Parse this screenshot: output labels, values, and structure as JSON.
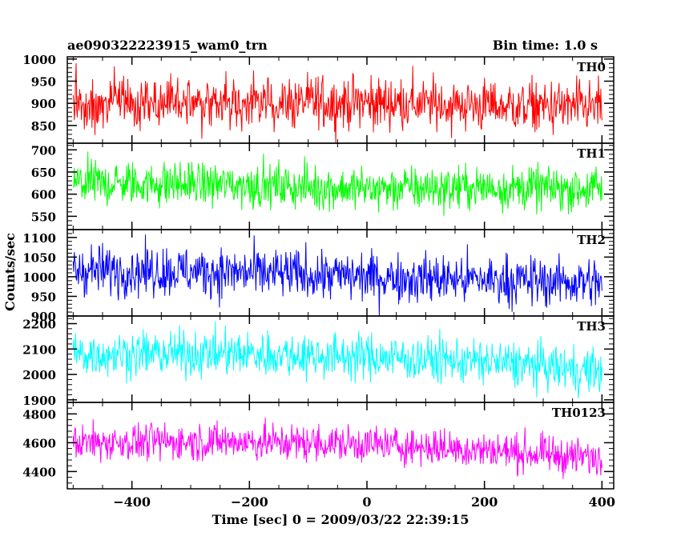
{
  "header": {
    "title": "ae090322223915_wam0_trn",
    "bin_time": "Bin time: 1.0 s"
  },
  "axes": {
    "ylabel": "Counts/sec",
    "xlabel": "Time [sec] 0 = 2009/03/22 22:39:15"
  },
  "colors": {
    "TH0": "#ff0000",
    "TH1": "#00ff00",
    "TH2": "#0000ff",
    "TH3": "#00ffff",
    "TH0123": "#ff00ff"
  },
  "chart_data": {
    "type": "line",
    "title": "ae090322223915_wam0_trn",
    "subtitle": "Bin time: 1.0 s",
    "xlabel": "Time [sec] 0 = 2009/03/22 22:39:15",
    "ylabel": "Counts/sec",
    "xlim": [
      -510,
      420
    ],
    "data_range": [
      -500,
      400
    ],
    "x_step": 1.0,
    "xticks": [
      -400,
      -200,
      0,
      200,
      400
    ],
    "panels": [
      {
        "name": "TH0",
        "color": "#ff0000",
        "ylim": [
          810,
          1005
        ],
        "yticks": [
          850,
          900,
          950,
          1000
        ],
        "trend": [
          [
            -500,
            895
          ],
          [
            -250,
            900
          ],
          [
            0,
            902
          ],
          [
            200,
            895
          ],
          [
            400,
            890
          ]
        ],
        "spread": 30
      },
      {
        "name": "TH1",
        "color": "#00ff00",
        "ylim": [
          520,
          715
        ],
        "yticks": [
          550,
          600,
          650,
          700
        ],
        "trend": [
          [
            -500,
            625
          ],
          [
            -250,
            622
          ],
          [
            0,
            612
          ],
          [
            200,
            615
          ],
          [
            400,
            612
          ]
        ],
        "spread": 25
      },
      {
        "name": "TH2",
        "color": "#0000ff",
        "ylim": [
          900,
          1120
        ],
        "yticks": [
          900,
          950,
          1000,
          1050,
          1100
        ],
        "trend": [
          [
            -500,
            1018
          ],
          [
            -250,
            1012
          ],
          [
            0,
            1000
          ],
          [
            200,
            992
          ],
          [
            400,
            985
          ]
        ],
        "spread": 32
      },
      {
        "name": "TH3",
        "color": "#00ffff",
        "ylim": [
          1890,
          2230
        ],
        "yticks": [
          1900,
          2000,
          2100,
          2200
        ],
        "trend": [
          [
            -500,
            2080
          ],
          [
            -250,
            2082
          ],
          [
            0,
            2070
          ],
          [
            200,
            2050
          ],
          [
            400,
            2010
          ]
        ],
        "spread": 45
      },
      {
        "name": "TH0123",
        "color": "#ff00ff",
        "ylim": [
          4280,
          4880
        ],
        "yticks": [
          4400,
          4600,
          4800
        ],
        "trend": [
          [
            -500,
            4600
          ],
          [
            -250,
            4610
          ],
          [
            0,
            4590
          ],
          [
            200,
            4550
          ],
          [
            400,
            4490
          ]
        ],
        "spread": 65
      }
    ]
  }
}
